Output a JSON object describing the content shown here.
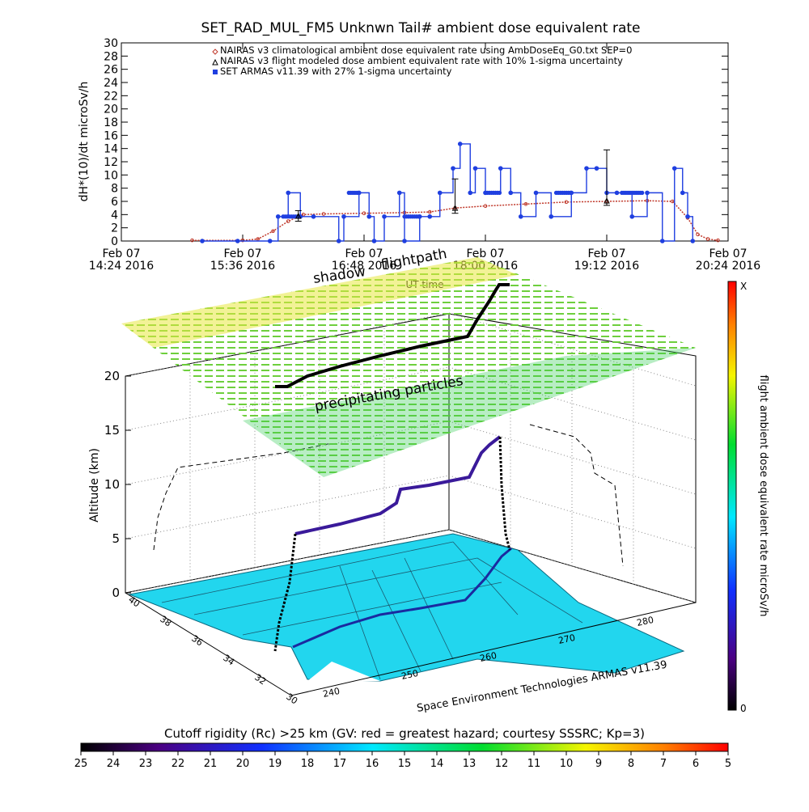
{
  "top_chart": {
    "title": "SET_RAD_MUL_FM5 Unknwn Tail#  ambient dose equivalent rate",
    "ylabel": "dH*(10)/dt microSv/h",
    "yticks": [
      "0",
      "2",
      "4",
      "6",
      "8",
      "10",
      "12",
      "14",
      "16",
      "18",
      "20",
      "22",
      "24",
      "26",
      "28",
      "30"
    ],
    "xticks": [
      {
        "line1": "Feb 07",
        "line2": "14:24 2016"
      },
      {
        "line1": "Feb 07",
        "line2": "15:36 2016"
      },
      {
        "line1": "Feb 07",
        "line2": "16:48 2016"
      },
      {
        "line1": "Feb 07",
        "line2": "18:00 2016"
      },
      {
        "line1": "Feb 07",
        "line2": "19:12 2016"
      },
      {
        "line1": "Feb 07",
        "line2": "20:24 2016"
      }
    ],
    "xlabel": "UT time",
    "legend": [
      {
        "label": "NAIRAS v3 climatological ambient dose equivalent rate using AmbDoseEq_G0.txt SEP=0",
        "color": "#c0392b",
        "marker": "diamond"
      },
      {
        "label": "NAIRAS v3 flight modeled dose ambient equivalent rate with 10% 1-sigma uncertainty",
        "color": "#000000",
        "marker": "triangle"
      },
      {
        "label": "SET ARMAS v11.39 with 27% 1-sigma uncertainty",
        "color": "#1f3fe0",
        "marker": "square"
      }
    ]
  },
  "chart_data": [
    {
      "type": "line",
      "title": "SET_RAD_MUL_FM5 Unknwn Tail#  ambient dose equivalent rate",
      "xlabel": "UT time",
      "ylabel": "dH*(10)/dt microSv/h",
      "xlim_hours": [
        14.4,
        20.4
      ],
      "ylim": [
        0,
        30
      ],
      "x_tick_labels": [
        "14:24",
        "15:36",
        "16:48",
        "18:00",
        "19:12",
        "20:24"
      ],
      "series": [
        {
          "name": "NAIRAS v3 climatological ambient dose equivalent rate using AmbDoseEq_G0.txt SEP=0",
          "color": "#c0392b",
          "x_hours": [
            15.1,
            15.6,
            15.75,
            15.9,
            16.05,
            16.2,
            16.4,
            16.8,
            17.2,
            17.45,
            17.7,
            18.0,
            18.4,
            18.8,
            19.2,
            19.6,
            19.85,
            20.0,
            20.1,
            20.2,
            20.3
          ],
          "values": [
            0.1,
            0.1,
            0.3,
            1.5,
            3.0,
            4.0,
            4.1,
            4.2,
            4.3,
            4.4,
            5.0,
            5.3,
            5.6,
            5.9,
            6.0,
            6.1,
            6.0,
            3.5,
            1.0,
            0.3,
            0.1
          ]
        },
        {
          "name": "NAIRAS v3 flight modeled dose ambient equivalent rate with 10% 1-sigma uncertainty",
          "color": "#000000",
          "x_hours": [
            16.15,
            17.7,
            19.2
          ],
          "values": [
            3.8,
            5.0,
            6.1
          ],
          "err_low": [
            3.0,
            4.2,
            5.4
          ],
          "err_high": [
            4.6,
            9.4,
            13.8
          ]
        },
        {
          "name": "SET ARMAS v11.39 with 27% 1-sigma uncertainty",
          "color": "#1f3fe0",
          "x_hours": [
            15.2,
            15.55,
            15.87,
            15.95,
            16.05,
            16.17,
            16.3,
            16.55,
            16.6,
            16.75,
            16.85,
            16.9,
            17.0,
            17.15,
            17.2,
            17.35,
            17.45,
            17.55,
            17.68,
            17.75,
            17.85,
            17.9,
            18.0,
            18.15,
            18.25,
            18.35,
            18.5,
            18.65,
            18.85,
            19.0,
            19.1,
            19.2,
            19.3,
            19.45,
            19.6,
            19.75,
            19.87,
            19.95,
            20.0,
            20.05
          ],
          "values": [
            0,
            0,
            0,
            3.7,
            7.3,
            3.7,
            3.7,
            0,
            3.7,
            7.3,
            3.7,
            0,
            3.7,
            7.3,
            0,
            3.7,
            3.7,
            7.3,
            11,
            14.7,
            7.3,
            11,
            7.3,
            11,
            7.3,
            3.7,
            7.3,
            3.7,
            7.3,
            11,
            11,
            7.3,
            7.3,
            3.7,
            7.3,
            0,
            11,
            7.3,
            3.7,
            0
          ]
        }
      ]
    },
    {
      "type": "scatter",
      "subtype": "3d-flight-track",
      "zlabel": "Altitude (km)",
      "zticks": [
        "0",
        "5",
        "10",
        "15",
        "20"
      ],
      "zlim": [
        0,
        20
      ],
      "lat_ticks": [
        "40",
        "38",
        "36",
        "34",
        "32",
        "30"
      ],
      "lon_ticks": [
        "240",
        "250",
        "260",
        "270",
        "280"
      ],
      "layer_labels": [
        "shadow",
        "flightpath",
        "precipitating particles"
      ],
      "flight_track": {
        "lon": [
          243,
          244,
          248,
          252,
          256,
          259,
          262,
          264,
          266,
          267,
          268
        ],
        "lat": [
          36,
          36.2,
          37,
          37.8,
          38.6,
          39.4,
          40.2,
          40.8,
          41.2,
          41.3,
          41.5
        ],
        "alt_km": [
          0.5,
          5.5,
          6.0,
          7.0,
          8.0,
          10.0,
          10.5,
          11.0,
          11.5,
          12.3,
          13.0
        ]
      },
      "colorbar_right": {
        "label": "flight ambient dose equivalent rate microSv/h",
        "top": "X",
        "bottom": "0"
      },
      "caption": "Space Environment Technologies ARMAS v11.39",
      "colorbar_bottom": {
        "label": "Cutoff rigidity (Rc) >25 km (GV: red = greatest hazard; courtesy SSSRC; Kp=3)",
        "ticks": [
          "25",
          "24",
          "23",
          "22",
          "21",
          "20",
          "19",
          "18",
          "17",
          "16",
          "15",
          "14",
          "13",
          "12",
          "11",
          "10",
          "9",
          "8",
          "7",
          "6",
          "5"
        ]
      }
    }
  ]
}
